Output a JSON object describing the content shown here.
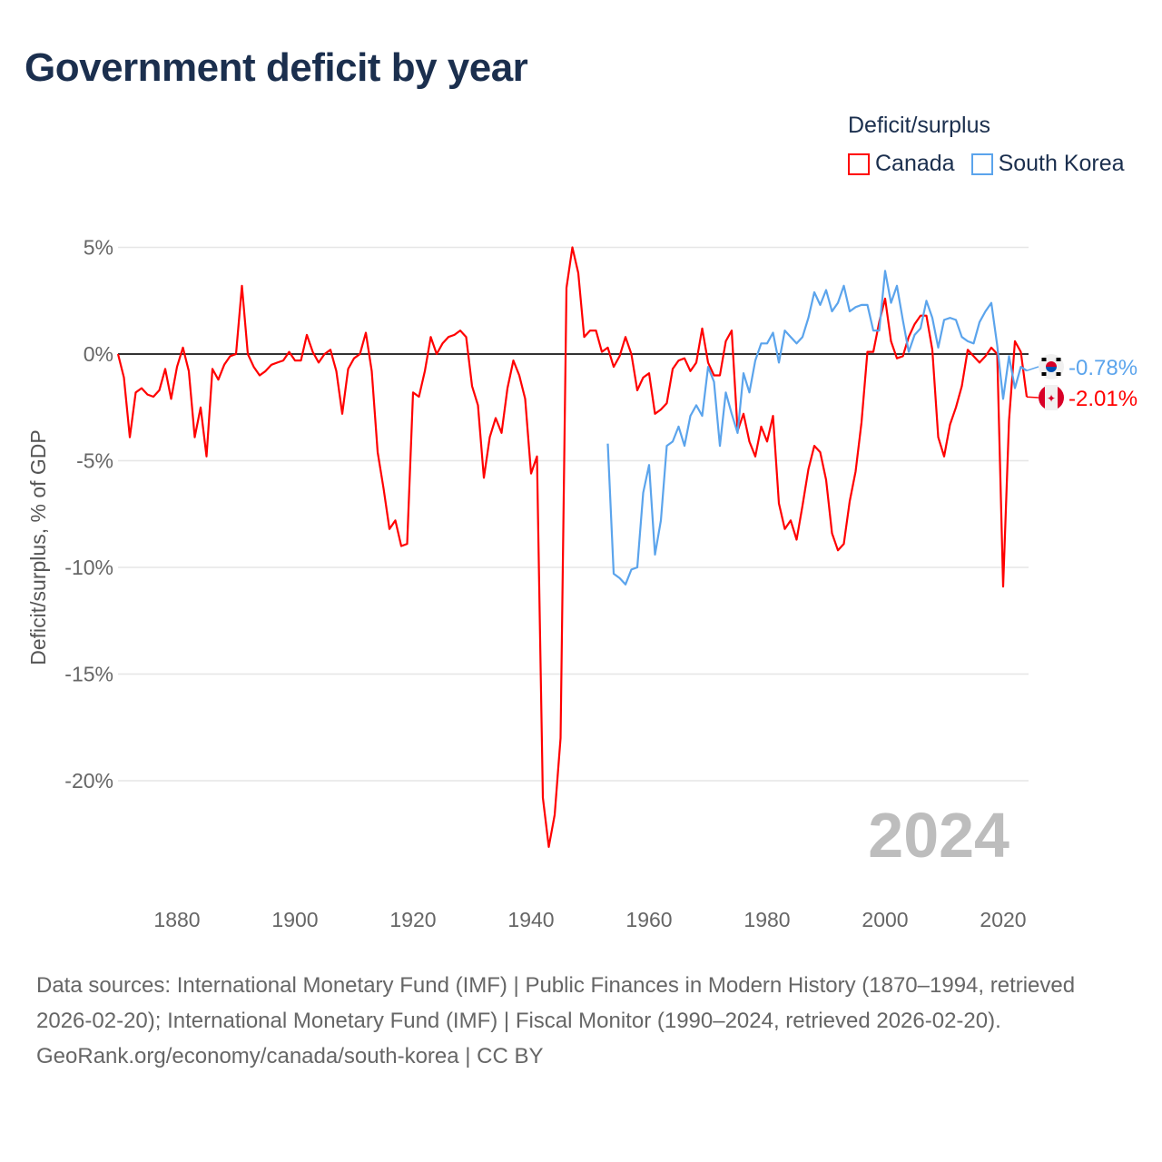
{
  "title": "Government deficit by year",
  "legend": {
    "title": "Deficit/surplus",
    "items": [
      {
        "label": "Canada",
        "color": "#ff0000"
      },
      {
        "label": "South Korea",
        "color": "#5ba4ec"
      }
    ]
  },
  "chart_data": {
    "type": "line",
    "title": "Government deficit by year",
    "xlabel": "",
    "ylabel": "Deficit/surplus, % of GDP",
    "xlim": [
      1870,
      2024
    ],
    "ylim": [
      -23.5,
      5
    ],
    "grid": true,
    "legend_placement": "top-right",
    "x_ticks": [
      1880,
      1900,
      1920,
      1940,
      1960,
      1980,
      2000,
      2020
    ],
    "y_ticks": [
      {
        "v": 5,
        "label": "5%"
      },
      {
        "v": 0,
        "label": "0%"
      },
      {
        "v": -5,
        "label": "-5%"
      },
      {
        "v": -10,
        "label": "-10%"
      },
      {
        "v": -15,
        "label": "-15%"
      },
      {
        "v": -20,
        "label": "-20%"
      }
    ],
    "current_year_label": "2024",
    "series": [
      {
        "name": "Canada",
        "color": "#ff0000",
        "start_year": 1870,
        "end_label": "-2.01%",
        "values": [
          0,
          -1.1,
          -3.9,
          -1.8,
          -1.6,
          -1.9,
          -2.0,
          -1.7,
          -0.7,
          -2.1,
          -0.6,
          0.3,
          -0.8,
          -3.9,
          -2.5,
          -4.8,
          -0.7,
          -1.2,
          -0.5,
          -0.1,
          0,
          3.2,
          0,
          -0.6,
          -1.0,
          -0.8,
          -0.5,
          -0.4,
          -0.3,
          0.1,
          -0.3,
          -0.3,
          0.9,
          0.1,
          -0.4,
          0,
          0.2,
          -0.8,
          -2.8,
          -0.7,
          -0.2,
          0,
          1.0,
          -0.8,
          -4.6,
          -6.3,
          -8.2,
          -7.8,
          -9.0,
          -8.9,
          -1.8,
          -2.0,
          -0.8,
          0.8,
          0,
          0.5,
          0.8,
          0.9,
          1.1,
          0.8,
          -1.5,
          -2.4,
          -5.8,
          -3.9,
          -3.0,
          -3.7,
          -1.6,
          -0.3,
          -1.0,
          -2.1,
          -5.6,
          -4.8,
          -20.8,
          -23.1,
          -21.6,
          -18.0,
          3.1,
          5.0,
          3.8,
          0.8,
          1.1,
          1.1,
          0.1,
          0.3,
          -0.6,
          -0.1,
          0.8,
          0,
          -1.7,
          -1.1,
          -0.9,
          -2.8,
          -2.6,
          -2.3,
          -0.7,
          -0.3,
          -0.2,
          -0.8,
          -0.4,
          1.2,
          -0.4,
          -1.0,
          -1.0,
          0.6,
          1.1,
          -3.6,
          -2.8,
          -4.1,
          -4.8,
          -3.4,
          -4.1,
          -2.9,
          -7.0,
          -8.2,
          -7.8,
          -8.7,
          -7.1,
          -5.4,
          -4.3,
          -4.6,
          -5.9,
          -8.4,
          -9.2,
          -8.9,
          -6.9,
          -5.5,
          -3.2,
          0.1,
          0.1,
          1.5,
          2.6,
          0.6,
          -0.2,
          -0.1,
          0.8,
          1.4,
          1.8,
          1.8,
          0.2,
          -3.9,
          -4.8,
          -3.3,
          -2.5,
          -1.5,
          0.2,
          -0.1,
          -0.4,
          -0.1,
          0.3,
          0,
          -10.9,
          -3.1,
          0.6,
          0.1,
          -2.01
        ]
      },
      {
        "name": "South Korea",
        "color": "#5ba4ec",
        "start_year": 1953,
        "end_label": "-0.78%",
        "values": [
          -4.2,
          -10.3,
          -10.5,
          -10.8,
          -10.1,
          -10.0,
          -6.5,
          -5.2,
          -9.4,
          -7.8,
          -4.3,
          -4.1,
          -3.4,
          -4.3,
          -2.9,
          -2.4,
          -2.9,
          -0.6,
          -1.3,
          -4.3,
          -1.8,
          -2.8,
          -3.7,
          -0.9,
          -1.8,
          -0.3,
          0.5,
          0.5,
          1.0,
          -0.4,
          1.1,
          0.8,
          0.5,
          0.8,
          1.7,
          2.9,
          2.3,
          3.0,
          2.0,
          2.4,
          3.2,
          2.0,
          2.2,
          2.3,
          2.3,
          1.1,
          1.1,
          3.9,
          2.4,
          3.2,
          1.6,
          0.1,
          0.9,
          1.2,
          2.5,
          1.7,
          0.3,
          1.6,
          1.7,
          1.6,
          0.8,
          0.6,
          0.5,
          1.5,
          2.0,
          2.4,
          0.4,
          -2.1,
          -0.1,
          -1.6,
          -0.6,
          -0.78
        ]
      }
    ]
  },
  "footer": {
    "sources": "Data sources: International Monetary Fund (IMF) | Public Finances in Modern History (1870–1994, retrieved 2026-02-20); International Monetary Fund (IMF) | Fiscal Monitor (1990–2024, retrieved 2026-02-20).",
    "link": "GeoRank.org/economy/canada/south-korea | CC BY"
  }
}
